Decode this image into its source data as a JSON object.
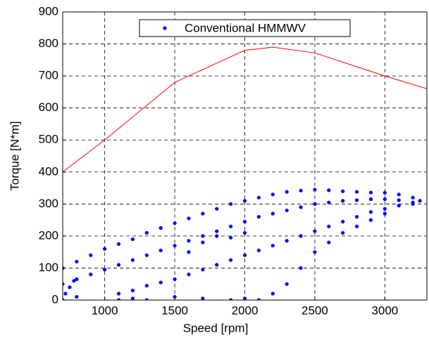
{
  "chart_data": {
    "type": "scatter",
    "xlabel": "Speed [rpm]",
    "ylabel": "Torque [N*m]",
    "xlim": [
      700,
      3300
    ],
    "ylim": [
      0,
      900
    ],
    "xticks": [
      1000,
      1500,
      2000,
      2500,
      3000
    ],
    "yticks": [
      0,
      100,
      200,
      300,
      400,
      500,
      600,
      700,
      800,
      900
    ],
    "grid": true,
    "legend": "upper center",
    "series": [
      {
        "name": "Conventional HMMWV",
        "color": "#0000ff",
        "type": "scatter",
        "x": [
          700,
          800,
          900,
          1000,
          1100,
          1200,
          1300,
          1400,
          1500,
          1600,
          1700,
          1800,
          1900,
          2000,
          2100,
          2200,
          2300,
          2400,
          2500,
          2600,
          2700,
          2800,
          2900,
          3000,
          3100,
          3200,
          3250,
          700,
          800,
          900,
          1000,
          1100,
          1200,
          1300,
          1400,
          1500,
          1600,
          1700,
          1800,
          1900,
          2000,
          2100,
          2200,
          2300,
          2400,
          2500,
          2600,
          2700,
          2800,
          2900,
          3000,
          3100,
          3200,
          1100,
          1200,
          1300,
          1400,
          1500,
          1600,
          1700,
          1800,
          1900,
          2000,
          2100,
          2200,
          2300,
          2400,
          2500,
          2600,
          2700,
          2800,
          2900,
          3000,
          3100,
          3200,
          2100,
          2200,
          2300,
          2400,
          2500,
          2600,
          2700,
          2800,
          2900,
          3000,
          700,
          720,
          750,
          800,
          780,
          1100,
          1200,
          1300,
          1500,
          1700,
          1900,
          2000,
          1600,
          1700,
          1800,
          1900,
          2000
        ],
        "values": [
          100,
          120,
          140,
          160,
          175,
          190,
          210,
          225,
          240,
          255,
          270,
          285,
          300,
          310,
          320,
          330,
          338,
          342,
          345,
          343,
          340,
          338,
          336,
          335,
          330,
          320,
          310,
          50,
          65,
          80,
          95,
          110,
          125,
          140,
          155,
          170,
          185,
          200,
          215,
          230,
          245,
          260,
          270,
          280,
          290,
          300,
          305,
          310,
          312,
          315,
          315,
          312,
          305,
          20,
          30,
          45,
          55,
          65,
          80,
          95,
          110,
          125,
          140,
          155,
          170,
          185,
          200,
          215,
          230,
          245,
          260,
          275,
          285,
          295,
          300,
          0,
          20,
          50,
          100,
          150,
          180,
          210,
          230,
          250,
          270,
          0,
          20,
          40,
          10,
          60,
          0,
          5,
          0,
          10,
          5,
          0,
          5,
          150,
          180,
          200,
          195,
          210
        ]
      },
      {
        "color": "#ff0000",
        "type": "line",
        "x": [
          700,
          1000,
          1500,
          2000,
          2200,
          2500,
          3000,
          3300
        ],
        "values": [
          400,
          500,
          680,
          780,
          790,
          772,
          700,
          660
        ]
      }
    ]
  }
}
